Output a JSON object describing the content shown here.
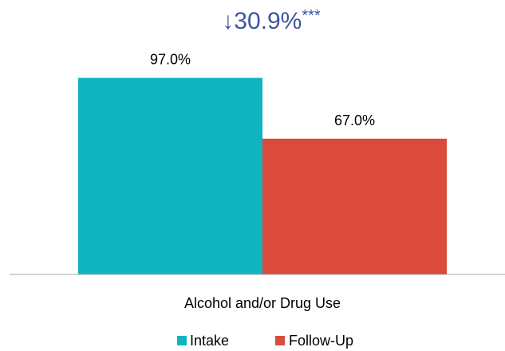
{
  "chart_data": {
    "type": "bar",
    "title": "",
    "categories": [
      "Alcohol and/or Drug Use"
    ],
    "series": [
      {
        "name": "Intake",
        "values": [
          97.0
        ],
        "labels": [
          "97.0%"
        ],
        "color": "#10b4c0"
      },
      {
        "name": "Follow-Up",
        "values": [
          67.0
        ],
        "labels": [
          "67.0%"
        ],
        "color": "#db4b3b"
      }
    ],
    "annotation": {
      "arrow": "↓",
      "text": "30.9%",
      "stars": "***",
      "color": "#3e55a0"
    },
    "ylim": [
      0,
      100
    ],
    "grid": false,
    "legend_position": "bottom"
  }
}
